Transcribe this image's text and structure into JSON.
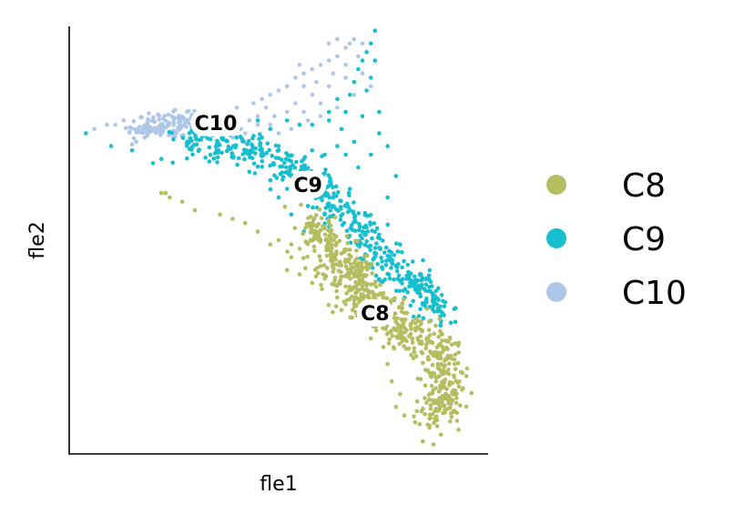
{
  "chart_data": {
    "type": "scatter",
    "title": "",
    "xlabel": "fle1",
    "ylabel": "fle2",
    "xlim": [
      0,
      100
    ],
    "ylim": [
      0,
      100
    ],
    "ticks": false,
    "grid": false,
    "legend_position": "right",
    "series": [
      {
        "name": "C8",
        "color": "#b5bd61",
        "label_at": [
          73,
          33
        ],
        "spine": [
          [
            58,
            54
          ],
          [
            62,
            48
          ],
          [
            66,
            42
          ],
          [
            70,
            37
          ],
          [
            74,
            33
          ],
          [
            79,
            30
          ],
          [
            84,
            27
          ],
          [
            88,
            24
          ],
          [
            90,
            19
          ],
          [
            89,
            12
          ],
          [
            87,
            8
          ]
        ],
        "core_count": 700,
        "spread": 2.6,
        "outliers": [
          [
            22,
            61
          ],
          [
            23,
            61
          ],
          [
            30,
            57
          ],
          [
            36,
            56
          ],
          [
            39,
            55
          ],
          [
            42,
            54
          ],
          [
            45,
            52
          ],
          [
            48,
            49
          ],
          [
            50,
            50
          ],
          [
            53,
            49
          ],
          [
            55,
            48
          ],
          [
            53,
            46
          ],
          [
            52,
            43
          ],
          [
            55,
            42
          ],
          [
            58,
            40
          ],
          [
            61,
            41
          ],
          [
            66,
            35
          ],
          [
            72,
            27
          ],
          [
            75,
            25
          ],
          [
            76,
            21
          ],
          [
            77,
            17
          ],
          [
            79,
            14
          ],
          [
            78,
            11
          ],
          [
            80,
            9
          ],
          [
            83,
            10
          ],
          [
            85,
            16
          ],
          [
            88,
            18
          ],
          [
            92,
            21
          ],
          [
            95,
            20
          ],
          [
            82,
            26
          ],
          [
            93,
            26
          ],
          [
            24,
            60
          ],
          [
            27,
            59
          ]
        ]
      },
      {
        "name": "C9",
        "color": "#17becf",
        "label_at": [
          57,
          63
        ],
        "spine": [
          [
            27,
            73
          ],
          [
            36,
            73
          ],
          [
            44,
            71
          ],
          [
            50,
            68
          ],
          [
            55,
            66
          ],
          [
            60,
            63
          ],
          [
            63,
            59
          ],
          [
            66,
            56
          ],
          [
            70,
            52
          ],
          [
            75,
            46
          ],
          [
            80,
            41
          ],
          [
            85,
            37
          ],
          [
            89,
            33
          ]
        ],
        "core_count": 520,
        "spread": 2.0,
        "outliers": [
          [
            4,
            75
          ],
          [
            10,
            72
          ],
          [
            15,
            71
          ],
          [
            20,
            68
          ],
          [
            22,
            69
          ],
          [
            30,
            75
          ],
          [
            38,
            77
          ],
          [
            45,
            78
          ],
          [
            48,
            76
          ],
          [
            52,
            78
          ],
          [
            55,
            77
          ],
          [
            58,
            77
          ],
          [
            62,
            78
          ],
          [
            65,
            76
          ],
          [
            66,
            80
          ],
          [
            67,
            84
          ],
          [
            68,
            87
          ],
          [
            69,
            90
          ],
          [
            70,
            92
          ],
          [
            71,
            94
          ],
          [
            72,
            96
          ],
          [
            73,
            99
          ],
          [
            73,
            92
          ],
          [
            72,
            88
          ],
          [
            71,
            85
          ],
          [
            74,
            80
          ],
          [
            76,
            72
          ],
          [
            78,
            65
          ],
          [
            76,
            60
          ],
          [
            73,
            52
          ],
          [
            79,
            49
          ],
          [
            82,
            45
          ],
          [
            84,
            42
          ],
          [
            87,
            36
          ],
          [
            62,
            80
          ],
          [
            64,
            83
          ],
          [
            58,
            71
          ],
          [
            50,
            60
          ],
          [
            53,
            56
          ],
          [
            56,
            52
          ],
          [
            60,
            50
          ],
          [
            67,
            62
          ],
          [
            69,
            67
          ],
          [
            72,
            70
          ],
          [
            64,
            72
          ],
          [
            61,
            70
          ],
          [
            68,
            73
          ],
          [
            74,
            75
          ],
          [
            70,
            79
          ],
          [
            66,
            70
          ],
          [
            56,
            69
          ],
          [
            50,
            72
          ],
          [
            46,
            74
          ],
          [
            43,
            66
          ],
          [
            48,
            64
          ],
          [
            52,
            62
          ],
          [
            57,
            58
          ],
          [
            61,
            56
          ],
          [
            78,
            44
          ],
          [
            83,
            39
          ],
          [
            88,
            34
          ]
        ]
      },
      {
        "name": "C10",
        "color": "#aec7e8",
        "label_at": [
          35,
          77.5
        ],
        "spine": [
          [
            14,
            76
          ],
          [
            20,
            77
          ],
          [
            26,
            77
          ],
          [
            31,
            78
          ]
        ],
        "core_count": 140,
        "spread": 1.6,
        "outliers": [
          [
            6,
            76
          ],
          [
            9,
            77
          ],
          [
            11,
            77
          ],
          [
            13,
            78
          ],
          [
            16,
            73
          ],
          [
            18,
            74
          ],
          [
            37,
            80
          ],
          [
            40,
            81
          ],
          [
            44,
            82
          ],
          [
            46,
            83
          ],
          [
            48,
            84
          ],
          [
            50,
            85
          ],
          [
            52,
            86
          ],
          [
            54,
            88
          ],
          [
            56,
            89
          ],
          [
            58,
            90
          ],
          [
            60,
            91
          ],
          [
            62,
            92
          ],
          [
            64,
            93
          ],
          [
            66,
            95
          ],
          [
            67,
            96
          ],
          [
            68,
            97
          ],
          [
            70,
            96
          ],
          [
            62,
            96
          ],
          [
            64,
            97
          ],
          [
            56,
            86
          ],
          [
            54,
            82
          ],
          [
            52,
            80
          ],
          [
            49,
            79
          ],
          [
            47,
            81
          ],
          [
            45,
            77
          ],
          [
            43,
            78
          ],
          [
            41,
            76
          ],
          [
            58,
            84
          ],
          [
            60,
            82
          ],
          [
            62,
            86
          ],
          [
            64,
            81
          ],
          [
            66,
            88
          ],
          [
            68,
            84
          ],
          [
            66,
            91
          ],
          [
            70,
            89
          ],
          [
            72,
            86
          ],
          [
            60,
            79
          ],
          [
            57,
            78
          ],
          [
            53,
            76
          ],
          [
            50,
            75
          ],
          [
            48,
            77
          ],
          [
            45,
            79
          ],
          [
            33,
            79
          ],
          [
            36,
            78
          ],
          [
            34,
            75
          ],
          [
            39,
            74
          ],
          [
            42,
            75
          ],
          [
            56,
            80
          ],
          [
            69,
            93
          ],
          [
            63,
            89
          ],
          [
            59,
            87
          ],
          [
            55,
            91
          ]
        ]
      }
    ]
  }
}
